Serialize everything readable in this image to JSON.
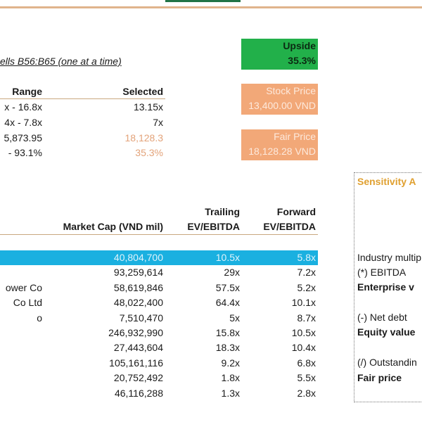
{
  "instruction": "ells B56:B65 (one at a time)",
  "summary": {
    "headers": {
      "range": "Range",
      "selected": "Selected"
    },
    "rows": [
      {
        "range": "x - 16.8x",
        "selected": "13.15x"
      },
      {
        "range": "4x - 7.8x",
        "selected": "7x"
      },
      {
        "range": "5,873.95",
        "selected": "18,128.3"
      },
      {
        "range": " - 93.1%",
        "selected": "35.3%"
      }
    ]
  },
  "cards": {
    "upside": {
      "label": "Upside",
      "value": "35.3%"
    },
    "stock_price": {
      "label": "Stock Price",
      "value": "13,400.00 VND"
    },
    "fair_price": {
      "label": "Fair Price",
      "value": "18,128.28 VND"
    }
  },
  "comps": {
    "headers": {
      "market_cap": "Market Cap (VND mil)",
      "trailing_1": "Trailing",
      "trailing_2": "EV/EBITDA",
      "forward_1": "Forward",
      "forward_2": "EV/EBITDA"
    },
    "rows": [
      {
        "name": "",
        "market_cap": "40,804,700",
        "trailing": "10.5x",
        "forward": "5.8x"
      },
      {
        "name": "",
        "market_cap": "93,259,614",
        "trailing": "29x",
        "forward": "7.2x"
      },
      {
        "name": "ower Co",
        "market_cap": "58,619,846",
        "trailing": "57.5x",
        "forward": "5.2x"
      },
      {
        "name": "Co Ltd",
        "market_cap": "48,022,400",
        "trailing": "64.4x",
        "forward": "10.1x"
      },
      {
        "name": "o",
        "market_cap": "7,510,470",
        "trailing": "5x",
        "forward": "8.7x"
      },
      {
        "name": "",
        "market_cap": "246,932,990",
        "trailing": "15.8x",
        "forward": "10.5x"
      },
      {
        "name": "",
        "market_cap": "27,443,604",
        "trailing": "18.3x",
        "forward": "10.4x"
      },
      {
        "name": "",
        "market_cap": "105,161,116",
        "trailing": "9.2x",
        "forward": "6.8x"
      },
      {
        "name": "",
        "market_cap": "20,752,492",
        "trailing": "1.8x",
        "forward": "5.5x"
      },
      {
        "name": "",
        "market_cap": "46,116,288",
        "trailing": "1.3x",
        "forward": "2.8x"
      }
    ]
  },
  "sensitivity": {
    "title": "Sensitivity A",
    "labels": [
      "Industry multip",
      "(*) EBITDA",
      "Enterprise v",
      "(-) Net debt",
      "Equity value",
      "(/) Outstandin",
      "Fair price"
    ]
  },
  "colors": {
    "accent_orange": "#f2a878",
    "upside_green": "#22b04a",
    "highlight_blue": "#1ab0e0",
    "rule": "#d9b48a"
  }
}
